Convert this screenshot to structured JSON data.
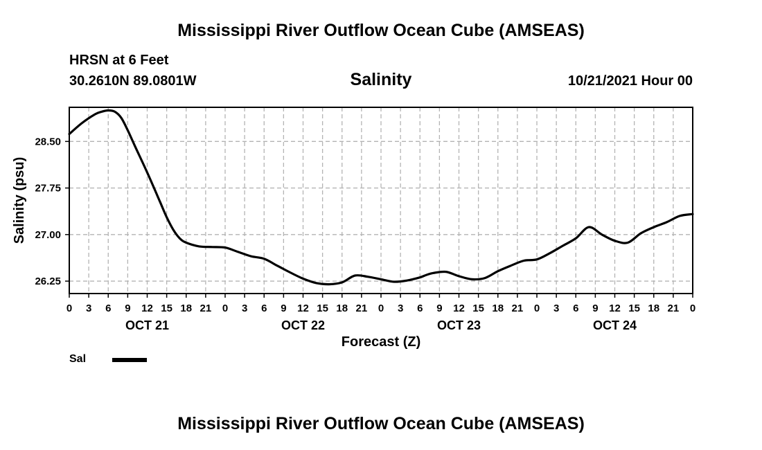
{
  "header": {
    "title": "Mississippi River Outflow Ocean Cube (AMSEAS)",
    "station": "HRSN at 6 Feet",
    "coordinates": "30.2610N  89.0801W",
    "chart_title": "Salinity",
    "datetime": "10/21/2021 Hour 00"
  },
  "footer": {
    "title": "Mississippi River Outflow Ocean Cube (AMSEAS)"
  },
  "legend": {
    "label": "Sal",
    "color": "#000000"
  },
  "chart_data": {
    "type": "line",
    "title": "Salinity",
    "xlabel": "Forecast (Z)",
    "ylabel": "Salinity (psu)",
    "xlim": [
      0,
      96
    ],
    "ylim": [
      26.05,
      29.05
    ],
    "grid": true,
    "x_ticks": [
      0,
      3,
      6,
      9,
      12,
      15,
      18,
      21,
      24,
      27,
      30,
      33,
      36,
      39,
      42,
      45,
      48,
      51,
      54,
      57,
      60,
      63,
      66,
      69,
      72,
      75,
      78,
      81,
      84,
      87,
      90,
      93,
      96
    ],
    "x_tick_labels": [
      "0",
      "3",
      "6",
      "9",
      "12",
      "15",
      "18",
      "21",
      "0",
      "3",
      "6",
      "9",
      "12",
      "15",
      "18",
      "21",
      "0",
      "3",
      "6",
      "9",
      "12",
      "15",
      "18",
      "21",
      "0",
      "3",
      "6",
      "9",
      "12",
      "15",
      "18",
      "21",
      "0"
    ],
    "date_labels": [
      {
        "x": 12,
        "label": "OCT 21"
      },
      {
        "x": 36,
        "label": "OCT 22"
      },
      {
        "x": 60,
        "label": "OCT 23"
      },
      {
        "x": 84,
        "label": "OCT 24"
      }
    ],
    "y_ticks": [
      26.25,
      27.0,
      27.75,
      28.5
    ],
    "y_tick_labels": [
      "26.25",
      "27.00",
      "27.75",
      "28.50"
    ],
    "series": [
      {
        "name": "Sal",
        "x": [
          0,
          2,
          4,
          5,
          6,
          7,
          8,
          9,
          10,
          12,
          14,
          15,
          16,
          17,
          18,
          20,
          22,
          24,
          26,
          28,
          30,
          32,
          34,
          36,
          38,
          40,
          42,
          44,
          46,
          48,
          50,
          52,
          54,
          55,
          56,
          58,
          60,
          62,
          64,
          66,
          68,
          70,
          72,
          74,
          76,
          78,
          80,
          82,
          84,
          86,
          88,
          90,
          92,
          94,
          96
        ],
        "values": [
          28.62,
          28.8,
          28.94,
          28.98,
          29.0,
          28.98,
          28.88,
          28.68,
          28.45,
          28.0,
          27.52,
          27.28,
          27.08,
          26.94,
          26.87,
          26.81,
          26.8,
          26.79,
          26.72,
          26.65,
          26.61,
          26.5,
          26.39,
          26.29,
          26.22,
          26.2,
          26.23,
          26.34,
          26.32,
          26.28,
          26.24,
          26.26,
          26.31,
          26.35,
          26.38,
          26.4,
          26.33,
          26.28,
          26.3,
          26.41,
          26.5,
          26.58,
          26.6,
          26.7,
          26.82,
          26.94,
          27.12,
          27.0,
          26.9,
          26.87,
          27.02,
          27.12,
          27.2,
          27.3,
          27.33
        ]
      }
    ]
  }
}
